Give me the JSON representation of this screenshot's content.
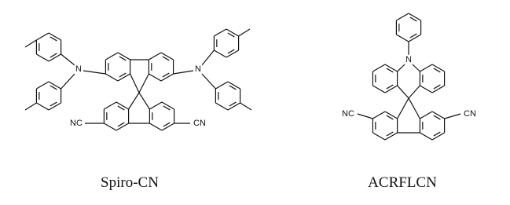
{
  "structures": [
    {
      "name": "Spiro-CN",
      "atoms": [
        "N",
        "N",
        "NC",
        "CN"
      ]
    },
    {
      "name": "ACRFLCN",
      "atoms": [
        "N",
        "NC",
        "CN"
      ]
    }
  ]
}
